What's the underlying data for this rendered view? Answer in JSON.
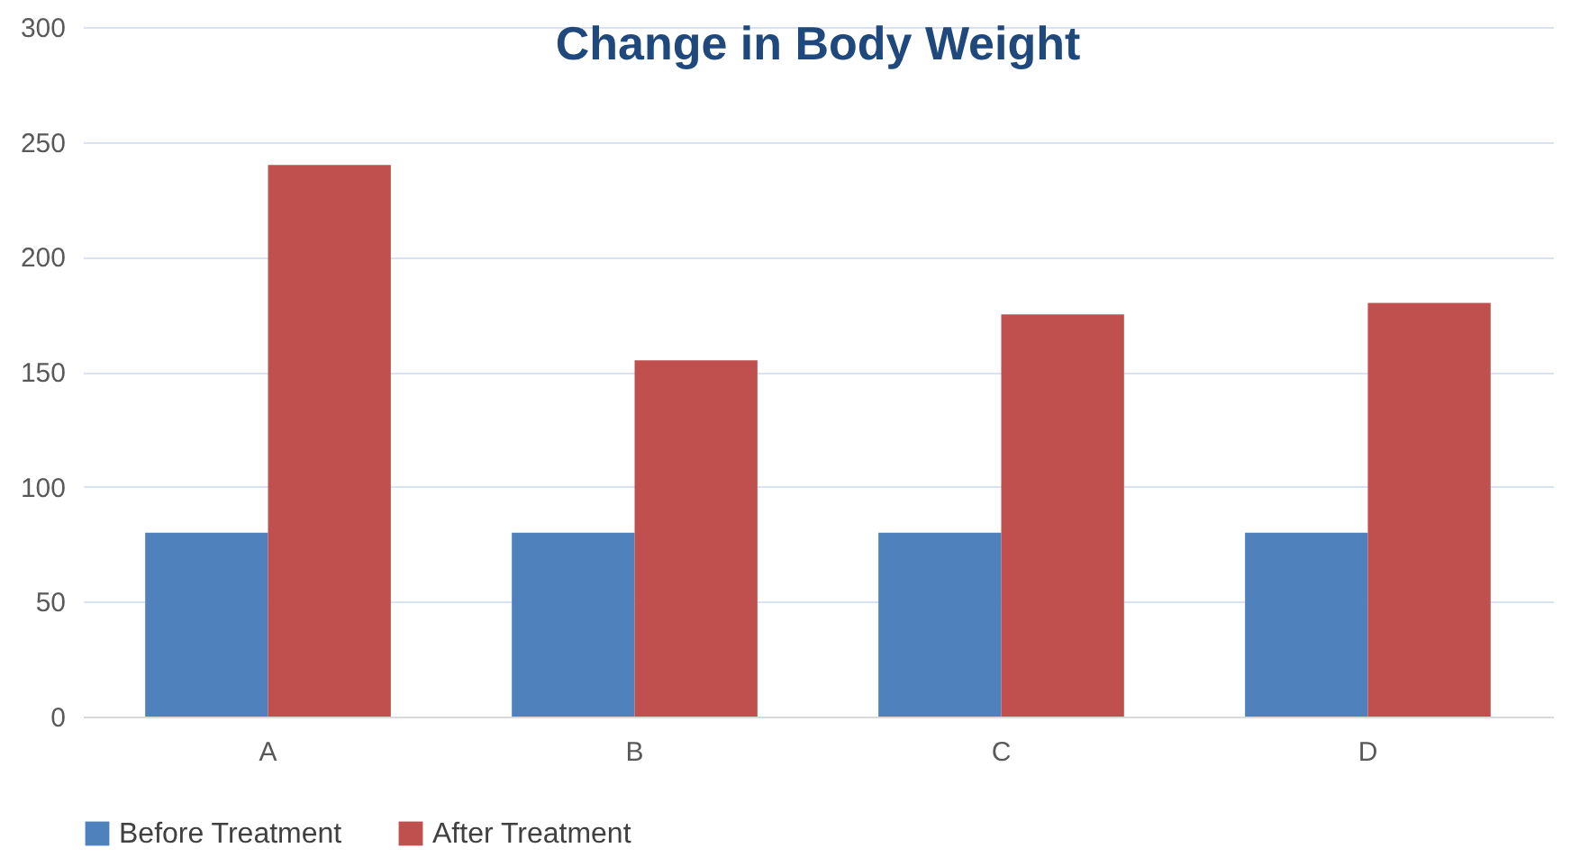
{
  "chart_data": {
    "type": "bar",
    "title": "Change in Body Weight",
    "categories": [
      "A",
      "B",
      "C",
      "D"
    ],
    "series": [
      {
        "name": "Before Treatment",
        "color": "#4f81bd",
        "values": [
          80,
          80,
          80,
          80
        ]
      },
      {
        "name": "After Treatment",
        "color": "#c0504d",
        "values": [
          240,
          155,
          175,
          180
        ]
      }
    ],
    "ylim": [
      0,
      300
    ],
    "yticks": [
      0,
      50,
      100,
      150,
      200,
      250,
      300
    ],
    "grid": "y",
    "legend": "bottom"
  }
}
